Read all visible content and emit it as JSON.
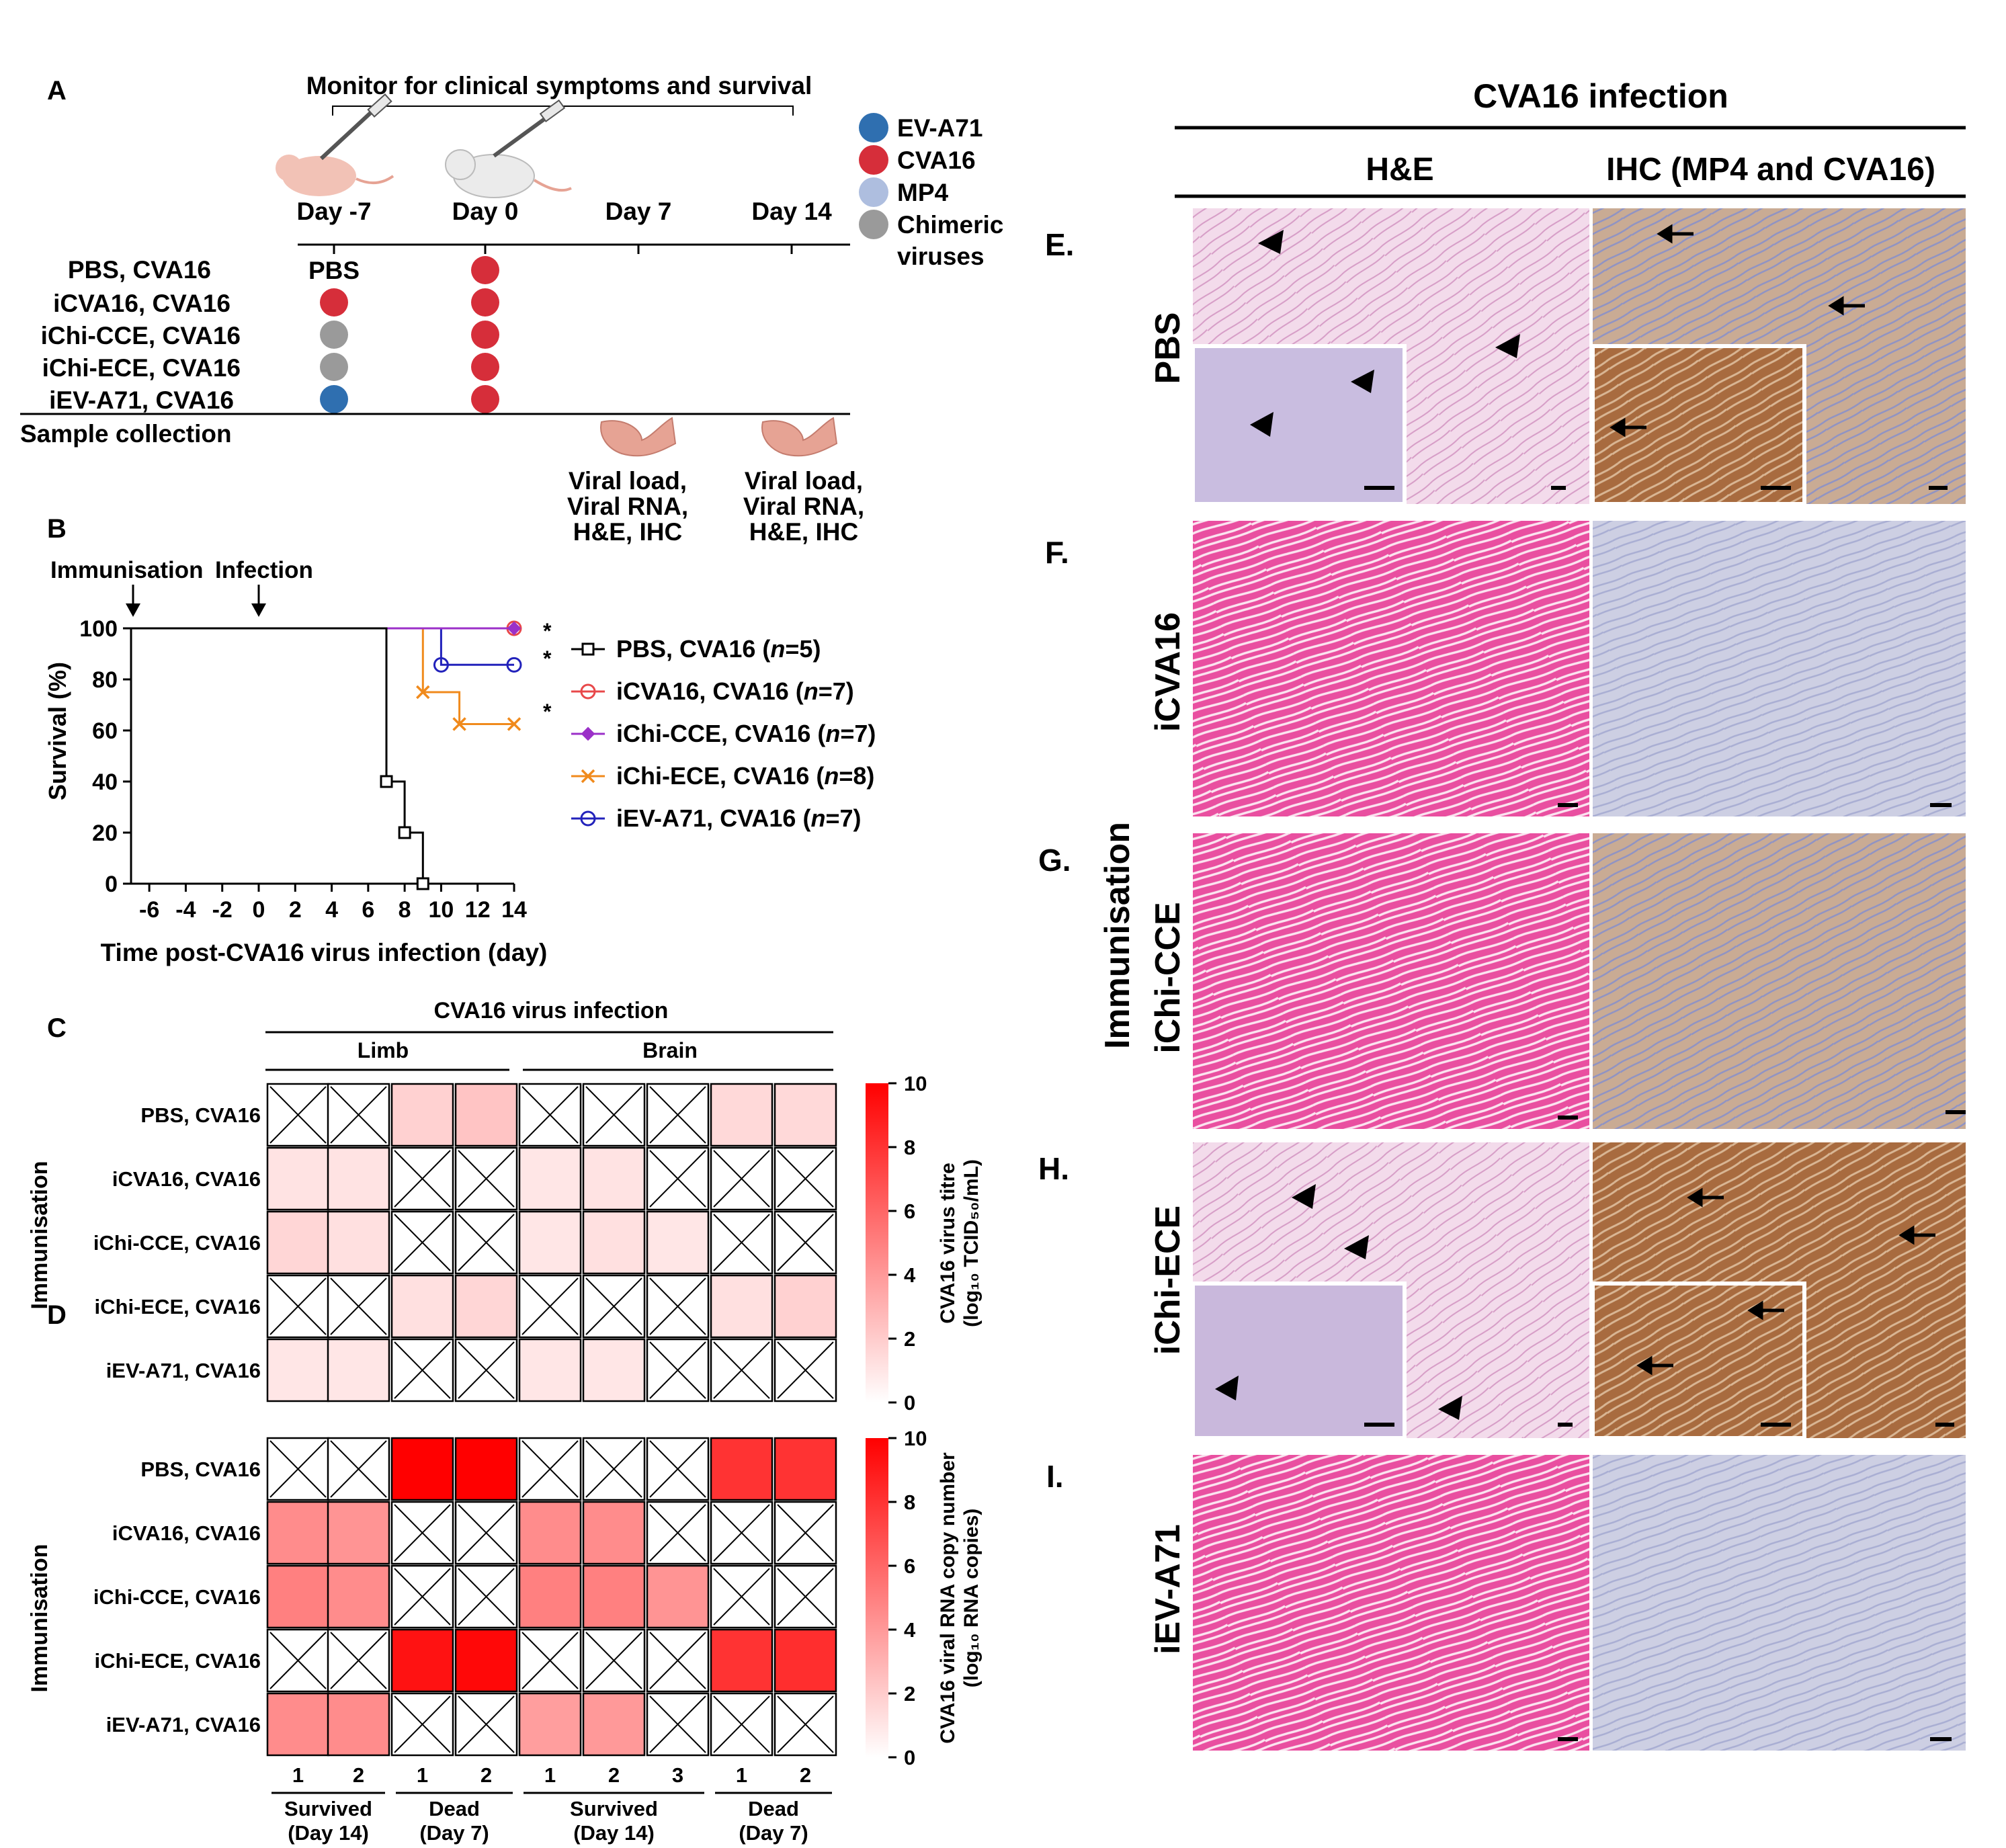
{
  "panel_a": {
    "letter": "A",
    "monitor_label": "Monitor for clinical symptoms and survival",
    "days": [
      "Day -7",
      "Day 0",
      "Day 7",
      "Day 14"
    ],
    "pbs_label": "PBS",
    "groups": [
      "PBS, CVA16",
      "iCVA16, CVA16",
      "iChi-CCE, CVA16",
      "iChi-ECE, CVA16",
      "iEV-A71, CVA16"
    ],
    "sample_collection": "Sample collection",
    "collection_notes": [
      "Viral load,",
      "Viral RNA,",
      "H&E, IHC"
    ],
    "legend": [
      {
        "label": "EV-A71",
        "color": "#2f6fb0"
      },
      {
        "label": "CVA16",
        "color": "#d62e3a"
      },
      {
        "label": "MP4",
        "color": "#aebedf"
      },
      {
        "label": "Chimeric",
        "label2": "viruses",
        "color": "#9a9a9a"
      }
    ],
    "immunisation_dots": [
      "",
      "CVA16",
      "Chimeric",
      "Chimeric",
      "EV-A71"
    ],
    "infection_dots": [
      "CVA16",
      "CVA16",
      "CVA16",
      "CVA16",
      "CVA16"
    ]
  },
  "panel_b": {
    "letter": "B",
    "arrow_labels": [
      "Immunisation",
      "Infection"
    ],
    "ylabel": "Survival (%)",
    "xlabel": "Time post-CVA16 virus infection (day)",
    "significance": "*"
  },
  "panel_cd": {
    "letter_c": "C",
    "letter_d": "D",
    "header": "CVA16 virus infection",
    "tissues": [
      "Limb",
      "Brain"
    ],
    "row_axis_label": "Immunisation",
    "rows": [
      "PBS, CVA16",
      "iCVA16, CVA16",
      "iChi-CCE, CVA16",
      "iChi-ECE, CVA16",
      "iEV-A71, CVA16"
    ],
    "columns": [
      "1",
      "2",
      "1",
      "2",
      "1",
      "2",
      "3",
      "1",
      "2"
    ],
    "column_groups": [
      {
        "l1": "Survived",
        "l2": "(Day 14)"
      },
      {
        "l1": "Dead",
        "l2": "(Day 7)"
      },
      {
        "l1": "Survived",
        "l2": "(Day 14)"
      },
      {
        "l1": "Dead",
        "l2": "(Day 7)"
      }
    ],
    "colorbar_c": {
      "title1": "CVA16 virus titre",
      "title2": "(log₁₀ TCID₅₀/mL)",
      "ticks": [
        "0",
        "2",
        "4",
        "6",
        "8",
        "10"
      ]
    },
    "colorbar_d": {
      "title1": "CVA16 viral RNA copy number",
      "title2": "(log₁₀ RNA copies)",
      "ticks": [
        "0",
        "2",
        "4",
        "6",
        "8",
        "10"
      ]
    }
  },
  "panel_e_i": {
    "title": "CVA16 infection",
    "columns": [
      "H&E",
      "IHC (MP4 and CVA16)"
    ],
    "row_letters": [
      "E.",
      "F.",
      "G.",
      "H.",
      "I."
    ],
    "row_labels": [
      "PBS",
      "iCVA16",
      "iChi-CCE",
      "iChi-ECE",
      "iEV-A71"
    ],
    "side_label": "Immunisation"
  },
  "chart_data": [
    {
      "type": "line",
      "title": "",
      "xlabel": "Time post-CVA16 virus infection (day)",
      "ylabel": "Survival (%)",
      "xlim": [
        -7,
        14
      ],
      "ylim": [
        0,
        100
      ],
      "xticks": [
        -6,
        -4,
        -2,
        0,
        2,
        4,
        6,
        8,
        10,
        12,
        14
      ],
      "yticks": [
        0,
        20,
        40,
        60,
        80,
        100
      ],
      "step": true,
      "series": [
        {
          "name": "PBS, CVA16 (",
          "n_text": "n",
          "n_value": "=5)",
          "color": "#000000",
          "marker": "square",
          "x": [
            -7,
            7,
            7,
            8,
            8,
            9,
            9
          ],
          "y": [
            100,
            100,
            40,
            40,
            20,
            20,
            0
          ],
          "marker_points": [
            [
              7,
              40
            ],
            [
              8,
              20
            ],
            [
              9,
              0
            ]
          ]
        },
        {
          "name": "iCVA16, CVA16 (",
          "n_text": "n",
          "n_value": "=7)",
          "color": "#e8484a",
          "marker": "circle",
          "x": [
            7,
            14
          ],
          "y": [
            100,
            100
          ],
          "marker_points": [
            [
              14,
              100
            ]
          ],
          "star": true
        },
        {
          "name": "iChi-CCE, CVA16 (",
          "n_text": "n",
          "n_value": "=7)",
          "color": "#9b30c8",
          "marker": "diamond",
          "x": [
            7,
            14
          ],
          "y": [
            100,
            100
          ],
          "marker_points": [
            [
              14,
              100
            ]
          ],
          "star": false
        },
        {
          "name": "iChi-ECE, CVA16 (",
          "n_text": "n",
          "n_value": "=8)",
          "color": "#f08a1c",
          "marker": "x",
          "x": [
            7,
            9,
            9,
            11,
            11,
            14
          ],
          "y": [
            100,
            100,
            75,
            75,
            62.5,
            62.5
          ],
          "marker_points": [
            [
              9,
              75
            ],
            [
              11,
              62.5
            ],
            [
              14,
              62.5
            ]
          ],
          "star": true
        },
        {
          "name": "iEV-A71, CVA16 (",
          "n_text": "n",
          "n_value": "=7)",
          "color": "#2222bb",
          "marker": "circle",
          "x": [
            7,
            10,
            10,
            14
          ],
          "y": [
            100,
            100,
            85.7,
            85.7
          ],
          "marker_points": [
            [
              10,
              85.7
            ],
            [
              14,
              85.7
            ]
          ],
          "star": true
        }
      ]
    },
    {
      "type": "heatmap",
      "title": "CVA16 virus infection",
      "ylabel": "Immunisation",
      "colorbar": "CVA16 virus titre (log₁₀ TCID₅₀/mL)",
      "range": [
        0,
        10
      ],
      "rows": [
        "PBS, CVA16",
        "iCVA16, CVA16",
        "iChi-CCE, CVA16",
        "iChi-ECE, CVA16",
        "iEV-A71, CVA16"
      ],
      "columns": [
        "Limb 1",
        "Limb 2",
        "Limb 1",
        "Limb 2",
        "Brain 1",
        "Brain 2",
        "Brain 3",
        "Brain 1",
        "Brain 2"
      ],
      "values": [
        [
          null,
          null,
          1.8,
          2.3,
          null,
          null,
          null,
          1.5,
          1.5
        ],
        [
          1.1,
          1.1,
          null,
          null,
          1.0,
          1.1,
          null,
          null,
          null
        ],
        [
          1.6,
          1.2,
          null,
          null,
          1.0,
          1.2,
          1.0,
          null,
          null
        ],
        [
          null,
          null,
          1.2,
          1.6,
          null,
          null,
          null,
          1.2,
          1.8
        ],
        [
          1.0,
          1.0,
          null,
          null,
          1.0,
          1.0,
          null,
          null,
          null
        ]
      ]
    },
    {
      "type": "heatmap",
      "title": "",
      "ylabel": "Immunisation",
      "colorbar": "CVA16 viral RNA copy number (log₁₀ RNA copies)",
      "range": [
        0,
        10
      ],
      "rows": [
        "PBS, CVA16",
        "iCVA16, CVA16",
        "iChi-CCE, CVA16",
        "iChi-ECE, CVA16",
        "iEV-A71, CVA16"
      ],
      "columns": [
        "Survived (Day 14) 1",
        "Survived (Day 14) 2",
        "Dead (Day 7) 1",
        "Dead (Day 7) 2",
        "Survived (Day 14) 1",
        "Survived (Day 14) 2",
        "Survived (Day 14) 3",
        "Dead (Day 7) 1",
        "Dead (Day 7) 2"
      ],
      "values": [
        [
          null,
          null,
          10,
          10,
          null,
          null,
          null,
          8,
          8
        ],
        [
          4.5,
          4.2,
          null,
          null,
          4.5,
          4.5,
          null,
          null,
          null
        ],
        [
          5.0,
          4.5,
          null,
          null,
          5.0,
          5.0,
          4.2,
          null,
          null
        ],
        [
          null,
          null,
          9.3,
          9.7,
          null,
          null,
          null,
          8,
          8.2
        ],
        [
          4.5,
          4.5,
          null,
          null,
          3.8,
          4.0,
          null,
          null,
          null
        ]
      ]
    }
  ]
}
